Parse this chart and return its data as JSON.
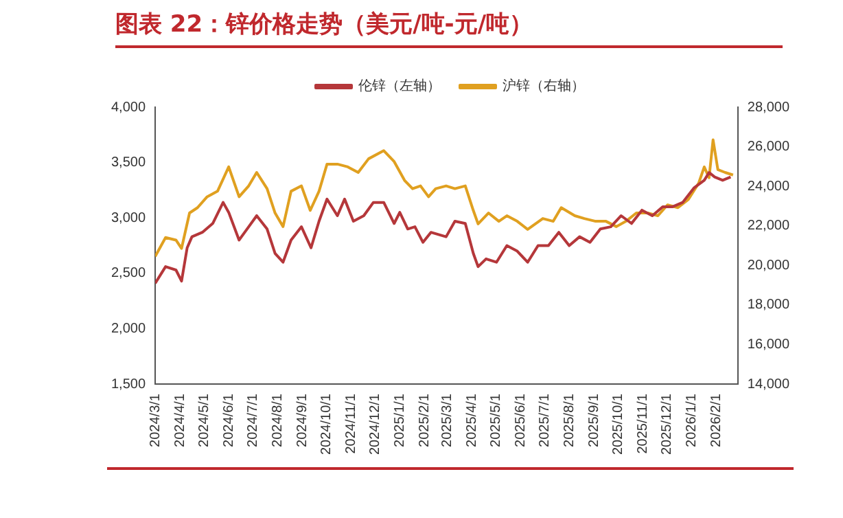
{
  "chart_data": {
    "type": "line",
    "title": "图表 22：锌价格走势（美元/吨-元/吨）",
    "xlim": [
      "2024-03-01",
      "2026-02-28"
    ],
    "xticks": [
      {
        "value": "2024-03-01",
        "label": "2024/3/1"
      },
      {
        "value": "2024-04-01",
        "label": "2024/4/1"
      },
      {
        "value": "2024-05-01",
        "label": "2024/5/1"
      },
      {
        "value": "2024-06-01",
        "label": "2024/6/1"
      },
      {
        "value": "2024-07-01",
        "label": "2024/7/1"
      },
      {
        "value": "2024-08-01",
        "label": "2024/8/1"
      },
      {
        "value": "2024-09-01",
        "label": "2024/9/1"
      },
      {
        "value": "2024-10-01",
        "label": "2024/10/1"
      },
      {
        "value": "2024-11-01",
        "label": "2024/11/1"
      },
      {
        "value": "2024-12-01",
        "label": "2024/12/1"
      },
      {
        "value": "2025-01-01",
        "label": "2025/1/1"
      },
      {
        "value": "2025-02-01",
        "label": "2025/2/1"
      },
      {
        "value": "2025-03-01",
        "label": "2025/3/1"
      },
      {
        "value": "2025-04-01",
        "label": "2025/4/1"
      },
      {
        "value": "2025-05-01",
        "label": "2025/5/1"
      },
      {
        "value": "2025-06-01",
        "label": "2025/6/1"
      },
      {
        "value": "2025-07-01",
        "label": "2025/7/1"
      },
      {
        "value": "2025-08-01",
        "label": "2025/8/1"
      },
      {
        "value": "2025-09-01",
        "label": "2025/9/1"
      },
      {
        "value": "2025-10-01",
        "label": "2025/10/1"
      },
      {
        "value": "2025-11-01",
        "label": "2025/11/1"
      },
      {
        "value": "2025-12-01",
        "label": "2025/12/1"
      },
      {
        "value": "2026-01-01",
        "label": "2026/1/1"
      },
      {
        "value": "2026-02-01",
        "label": "2026/2/1"
      }
    ],
    "ylim": [
      1500,
      4000
    ],
    "yticks": [
      {
        "value": 1500,
        "label": "1,500"
      },
      {
        "value": 2000,
        "label": "2,000"
      },
      {
        "value": 2500,
        "label": "2,500"
      },
      {
        "value": 3000,
        "label": "3,000"
      },
      {
        "value": 3500,
        "label": "3,500"
      },
      {
        "value": 4000,
        "label": "4,000"
      }
    ],
    "y2lim": [
      14000,
      28000
    ],
    "y2ticks": [
      {
        "value": 14000,
        "label": "14,000"
      },
      {
        "value": 16000,
        "label": "16,000"
      },
      {
        "value": 18000,
        "label": "18,000"
      },
      {
        "value": 20000,
        "label": "20,000"
      },
      {
        "value": 22000,
        "label": "22,000"
      },
      {
        "value": 24000,
        "label": "24,000"
      },
      {
        "value": 26000,
        "label": "26,000"
      },
      {
        "value": 28000,
        "label": "28,000"
      }
    ],
    "grid": false,
    "legend": "top",
    "marker": "none",
    "line_style": "solid",
    "series": [
      {
        "name": "伦锌（左轴）",
        "color": "#b5373a",
        "x": [
          "2024-03-01",
          "2024-03-14",
          "2024-03-27",
          "2024-04-03",
          "2024-04-10",
          "2024-04-16",
          "2024-04-29",
          "2024-05-12",
          "2024-05-25",
          "2024-06-01",
          "2024-06-14",
          "2024-06-26",
          "2024-07-06",
          "2024-07-19",
          "2024-07-29",
          "2024-08-08",
          "2024-08-18",
          "2024-08-31",
          "2024-09-12",
          "2024-09-22",
          "2024-10-02",
          "2024-10-15",
          "2024-10-24",
          "2024-11-04",
          "2024-11-17",
          "2024-11-29",
          "2024-12-12",
          "2024-12-25",
          "2025-01-01",
          "2025-01-11",
          "2025-01-20",
          "2025-01-30",
          "2025-02-09",
          "2025-02-28",
          "2025-03-11",
          "2025-03-24",
          "2025-04-03",
          "2025-04-09",
          "2025-04-19",
          "2025-05-02",
          "2025-05-15",
          "2025-05-28",
          "2025-06-10",
          "2025-06-23",
          "2025-07-06",
          "2025-07-19",
          "2025-08-01",
          "2025-08-14",
          "2025-08-27",
          "2025-09-09",
          "2025-09-22",
          "2025-10-05",
          "2025-10-18",
          "2025-10-31",
          "2025-11-13",
          "2025-11-26",
          "2025-12-08",
          "2025-12-21",
          "2026-01-04",
          "2026-01-17",
          "2026-01-23",
          "2026-01-30",
          "2026-02-09",
          "2026-02-19"
        ],
        "values": [
          2410,
          2560,
          2530,
          2430,
          2730,
          2830,
          2870,
          2950,
          3140,
          3050,
          2800,
          2920,
          3020,
          2900,
          2680,
          2600,
          2800,
          2920,
          2730,
          2970,
          3170,
          3020,
          3170,
          2970,
          3020,
          3140,
          3140,
          2950,
          3050,
          2900,
          2920,
          2780,
          2870,
          2830,
          2970,
          2950,
          2680,
          2560,
          2630,
          2600,
          2750,
          2700,
          2600,
          2750,
          2750,
          2870,
          2750,
          2830,
          2780,
          2900,
          2920,
          3020,
          2950,
          3070,
          3020,
          3100,
          3100,
          3140,
          3270,
          3340,
          3410,
          3370,
          3340,
          3370
        ]
      },
      {
        "name": "沪锌（右轴）",
        "color": "#e0a020",
        "axis": "y2",
        "x": [
          "2024-03-01",
          "2024-03-14",
          "2024-03-27",
          "2024-04-03",
          "2024-04-13",
          "2024-04-23",
          "2024-05-05",
          "2024-05-18",
          "2024-06-01",
          "2024-06-14",
          "2024-06-26",
          "2024-07-06",
          "2024-07-19",
          "2024-07-29",
          "2024-08-08",
          "2024-08-18",
          "2024-08-31",
          "2024-09-11",
          "2024-09-22",
          "2024-10-02",
          "2024-10-15",
          "2024-10-28",
          "2024-11-10",
          "2024-11-23",
          "2024-12-12",
          "2024-12-25",
          "2025-01-07",
          "2025-01-17",
          "2025-01-27",
          "2025-02-06",
          "2025-02-15",
          "2025-02-28",
          "2025-03-11",
          "2025-03-24",
          "2025-04-03",
          "2025-04-09",
          "2025-04-22",
          "2025-05-05",
          "2025-05-15",
          "2025-05-28",
          "2025-06-10",
          "2025-06-29",
          "2025-07-12",
          "2025-07-22",
          "2025-08-08",
          "2025-08-20",
          "2025-09-03",
          "2025-09-16",
          "2025-09-29",
          "2025-10-11",
          "2025-10-24",
          "2025-11-07",
          "2025-11-20",
          "2025-12-02",
          "2025-12-15",
          "2025-12-28",
          "2026-01-10",
          "2026-01-17",
          "2026-01-23",
          "2026-01-28",
          "2026-02-03",
          "2026-02-12",
          "2026-02-22"
        ],
        "values": [
          20450,
          21410,
          21280,
          20860,
          22650,
          22920,
          23470,
          23750,
          24980,
          23470,
          24020,
          24700,
          23880,
          22650,
          21960,
          23750,
          24020,
          22780,
          23750,
          25120,
          25120,
          24980,
          24700,
          25390,
          25800,
          25250,
          24300,
          23880,
          24020,
          23470,
          23880,
          24020,
          23880,
          24020,
          22780,
          22100,
          22650,
          22230,
          22510,
          22230,
          21820,
          22370,
          22230,
          22920,
          22510,
          22370,
          22230,
          22230,
          21960,
          22230,
          22650,
          22650,
          22510,
          23060,
          22920,
          23330,
          24160,
          24980,
          24430,
          26350,
          24840,
          24700,
          24570
        ]
      }
    ]
  }
}
